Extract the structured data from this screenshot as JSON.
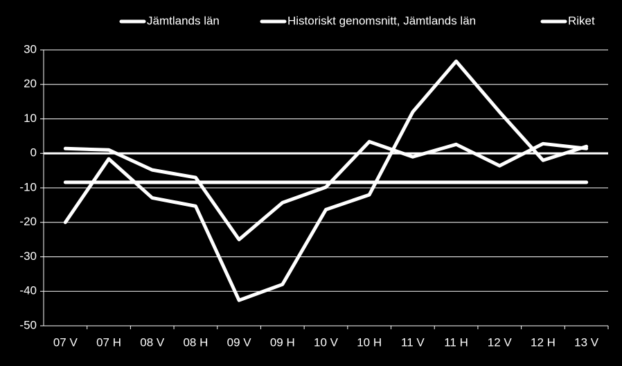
{
  "chart_data": {
    "type": "line",
    "categories": [
      "07 V",
      "07 H",
      "08 V",
      "08 H",
      "09 V",
      "09 H",
      "10 V",
      "10 H",
      "11 V",
      "11 H",
      "12 V",
      "12 H",
      "13 V"
    ],
    "series": [
      {
        "name": "Jämtlands län",
        "color": "#ffffff",
        "values": [
          -20,
          -1.6,
          -12.9,
          -15.3,
          -42.6,
          -38,
          -16.3,
          -12,
          12,
          26.7,
          12,
          -2,
          2
        ]
      },
      {
        "name": "Historiskt genomsnitt, Jämtlands län",
        "color": "#ffffff",
        "values": [
          -8.4,
          -8.4,
          -8.4,
          -8.4,
          -8.4,
          -8.4,
          -8.4,
          -8.4,
          -8.4,
          -8.4,
          -8.4,
          -8.4,
          -8.4
        ]
      },
      {
        "name": "Riket",
        "color": "#ffffff",
        "values": [
          1.4,
          1,
          -4.8,
          -7,
          -25,
          -14.3,
          -9.8,
          3.4,
          -1,
          2.6,
          -3.6,
          2.8,
          1.4
        ]
      }
    ],
    "ylim": [
      -50,
      30
    ],
    "yticks": [
      -50,
      -40,
      -30,
      -20,
      -10,
      0,
      10,
      20,
      30
    ],
    "grid": true,
    "legend": "top"
  }
}
